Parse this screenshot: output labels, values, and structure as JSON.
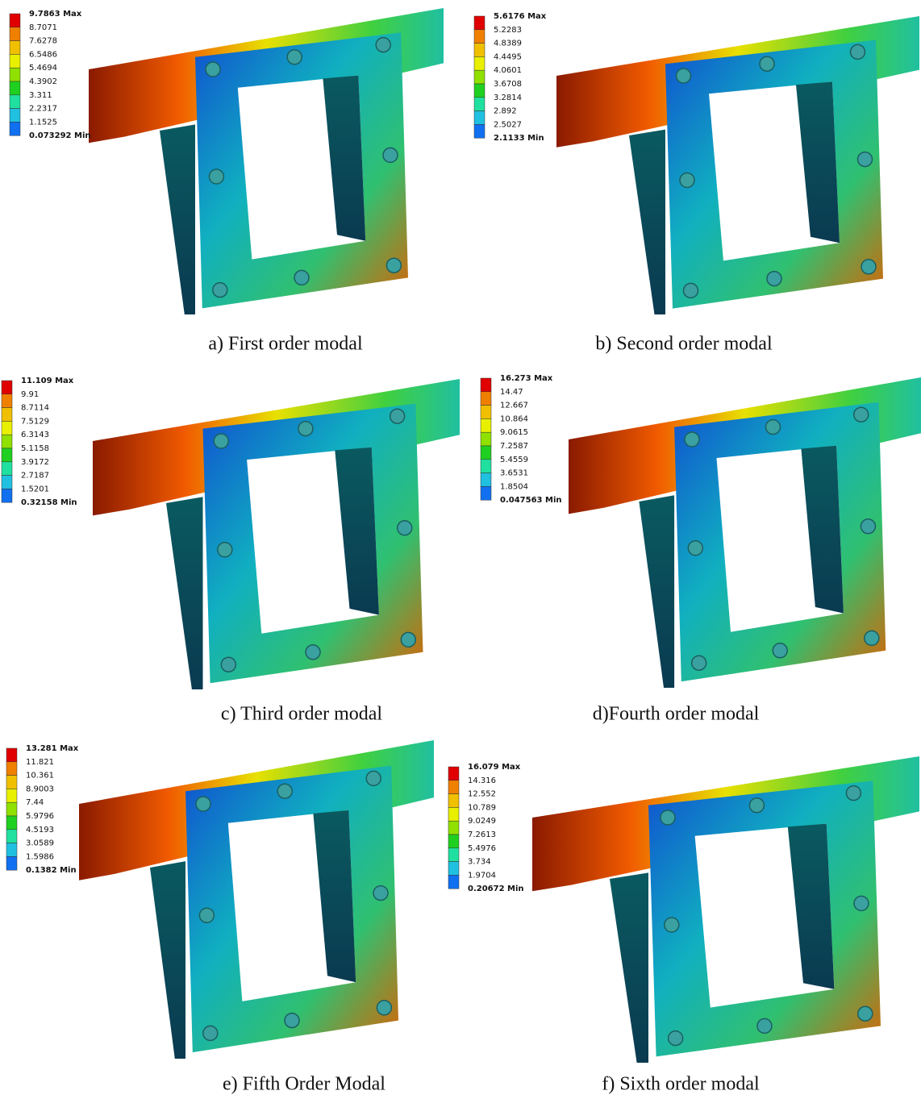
{
  "panels": [
    {
      "caption": "a) First order modal",
      "legend": [
        "9.7863 Max",
        "8.7071",
        "7.6278",
        "6.5486",
        "5.4694",
        "4.3902",
        "3.311",
        "2.2317",
        "1.1525",
        "0.073292 Min"
      ]
    },
    {
      "caption": "b) Second order modal",
      "legend": [
        "5.6176 Max",
        "5.2283",
        "4.8389",
        "4.4495",
        "4.0601",
        "3.6708",
        "3.2814",
        "2.892",
        "2.5027",
        "2.1133 Min"
      ]
    },
    {
      "caption": "c) Third order modal",
      "legend": [
        "11.109 Max",
        "9.91",
        "8.7114",
        "7.5129",
        "6.3143",
        "5.1158",
        "3.9172",
        "2.7187",
        "1.5201",
        "0.32158 Min"
      ]
    },
    {
      "caption": "d)Fourth order modal",
      "legend": [
        "16.273 Max",
        "14.47",
        "12.667",
        "10.864",
        "9.0615",
        "7.2587",
        "5.4559",
        "3.6531",
        "1.8504",
        "0.047563 Min"
      ]
    },
    {
      "caption": "e) Fifth Order Modal",
      "legend": [
        "13.281 Max",
        "11.821",
        "10.361",
        "8.9003",
        "7.44",
        "5.9796",
        "4.5193",
        "3.0589",
        "1.5986",
        "0.1382 Min"
      ]
    },
    {
      "caption": "f) Sixth order modal",
      "legend": [
        "16.079 Max",
        "14.316",
        "12.552",
        "10.789",
        "9.0249",
        "7.2613",
        "5.4976",
        "3.734",
        "1.9704",
        "0.20672 Min"
      ]
    }
  ]
}
